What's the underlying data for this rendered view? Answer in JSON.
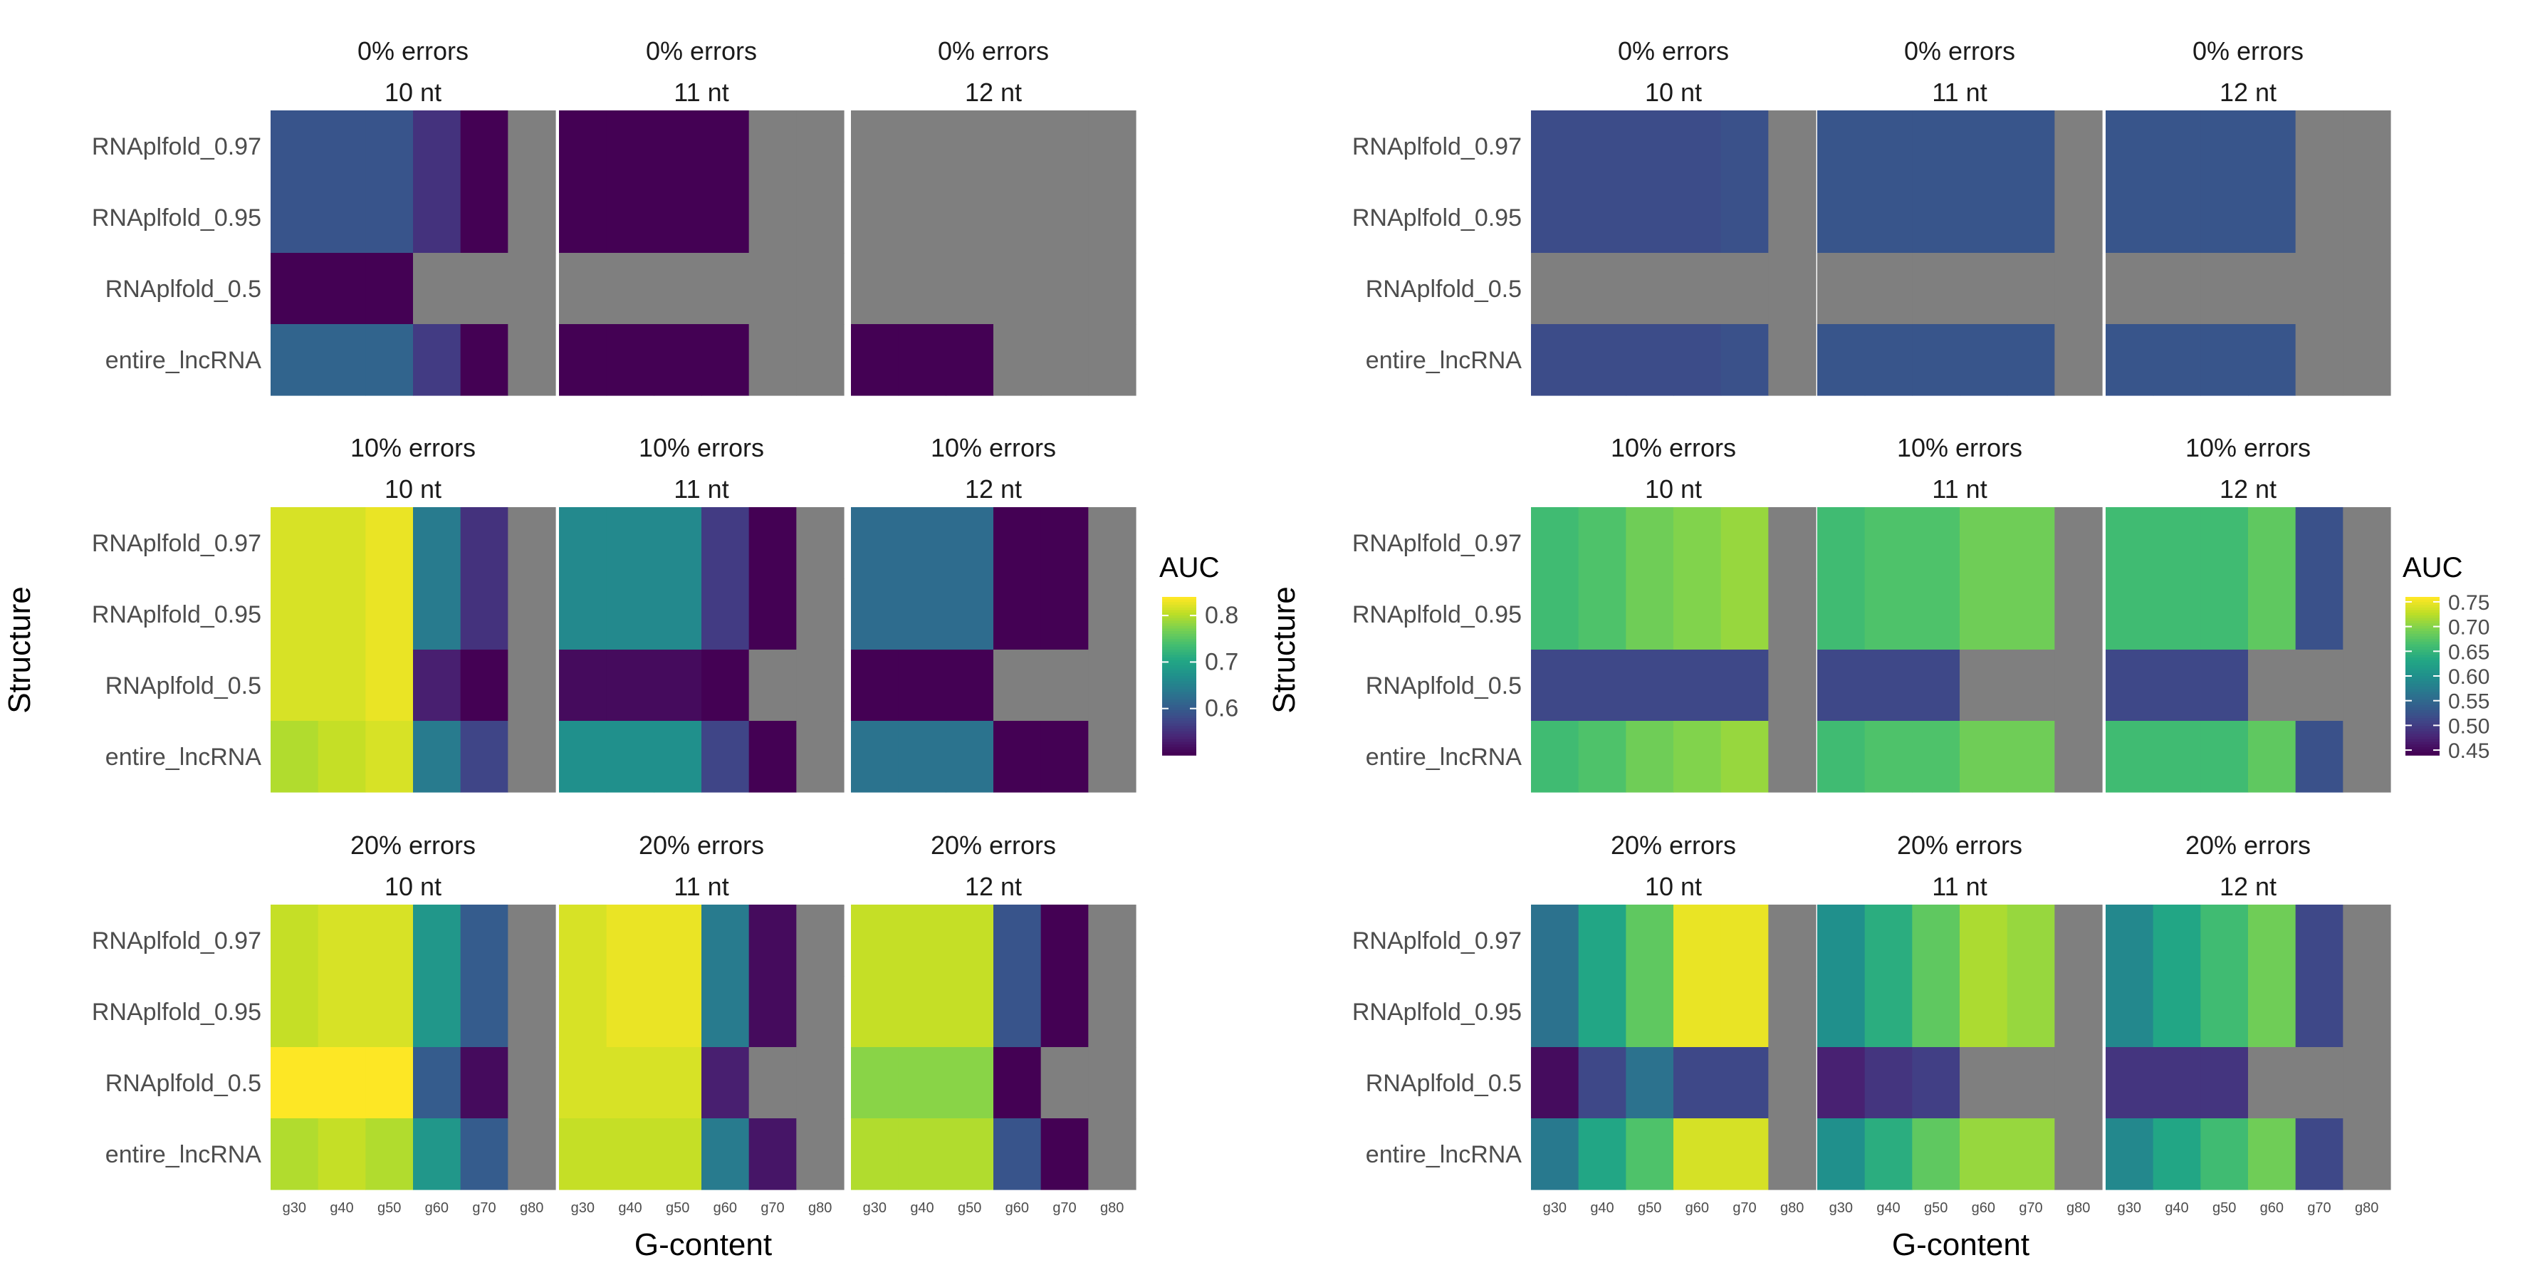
{
  "chart_data": [
    {
      "type": "heatmap",
      "panel_side": "left",
      "ylabel": "Structure",
      "xlabel": "G-content",
      "categories_x": [
        "g30",
        "g40",
        "g50",
        "g60",
        "g70",
        "g80"
      ],
      "categories_y": [
        "RNAplfold_0.97",
        "RNAplfold_0.95",
        "RNAplfold_0.5",
        "entire_lncRNA"
      ],
      "legend": {
        "title": "AUC",
        "ticks": [
          0.8,
          0.7,
          0.6
        ],
        "range": [
          0.5,
          0.84
        ],
        "position": "right"
      },
      "facets": [
        {
          "error_label": "0%  errors",
          "length_label": "10  nt",
          "values": [
            [
              0.59,
              0.59,
              0.59,
              0.55,
              0.47,
              null
            ],
            [
              0.59,
              0.59,
              0.59,
              0.55,
              0.47,
              null
            ],
            [
              0.49,
              0.49,
              0.49,
              null,
              null,
              null
            ],
            [
              0.61,
              0.61,
              0.61,
              0.56,
              0.47,
              null
            ]
          ]
        },
        {
          "error_label": "0%  errors",
          "length_label": "11  nt",
          "values": [
            [
              0.46,
              0.46,
              0.46,
              0.46,
              null,
              null
            ],
            [
              0.46,
              0.46,
              0.46,
              0.46,
              null,
              null
            ],
            [
              null,
              null,
              null,
              null,
              null,
              null
            ],
            [
              0.48,
              0.48,
              0.49,
              0.49,
              null,
              null
            ]
          ]
        },
        {
          "error_label": "0%  errors",
          "length_label": "12  nt",
          "values": [
            [
              null,
              null,
              null,
              null,
              null,
              null
            ],
            [
              null,
              null,
              null,
              null,
              null,
              null
            ],
            [
              null,
              null,
              null,
              null,
              null,
              null
            ],
            [
              0.47,
              0.47,
              0.47,
              null,
              null,
              null
            ]
          ]
        },
        {
          "error_label": "10%  errors",
          "length_label": "10  nt",
          "values": [
            [
              0.82,
              0.82,
              0.83,
              0.64,
              0.55,
              null
            ],
            [
              0.82,
              0.82,
              0.83,
              0.64,
              0.55,
              null
            ],
            [
              0.82,
              0.82,
              0.83,
              0.53,
              0.49,
              null
            ],
            [
              0.8,
              0.81,
              0.82,
              0.64,
              0.57,
              null
            ]
          ]
        },
        {
          "error_label": "10%  errors",
          "length_label": "11  nt",
          "values": [
            [
              0.66,
              0.66,
              0.66,
              0.56,
              0.48,
              null
            ],
            [
              0.66,
              0.66,
              0.66,
              0.56,
              0.48,
              null
            ],
            [
              0.51,
              0.51,
              0.51,
              0.49,
              null,
              null
            ],
            [
              0.67,
              0.67,
              0.67,
              0.57,
              0.48,
              null
            ]
          ]
        },
        {
          "error_label": "10%  errors",
          "length_label": "12  nt",
          "values": [
            [
              0.62,
              0.62,
              0.62,
              0.49,
              0.47,
              null
            ],
            [
              0.62,
              0.62,
              0.62,
              0.49,
              0.47,
              null
            ],
            [
              0.48,
              0.48,
              0.48,
              null,
              null,
              null
            ],
            [
              0.63,
              0.63,
              0.63,
              0.49,
              0.47,
              null
            ]
          ]
        },
        {
          "error_label": "20%  errors",
          "length_label": "10  nt",
          "values": [
            [
              0.81,
              0.82,
              0.82,
              0.68,
              0.6,
              null
            ],
            [
              0.81,
              0.82,
              0.82,
              0.68,
              0.6,
              null
            ],
            [
              0.84,
              0.84,
              0.84,
              0.6,
              0.51,
              null
            ],
            [
              0.8,
              0.81,
              0.8,
              0.68,
              0.6,
              null
            ]
          ]
        },
        {
          "error_label": "20%  errors",
          "length_label": "11  nt",
          "values": [
            [
              0.82,
              0.83,
              0.83,
              0.64,
              0.51,
              null
            ],
            [
              0.82,
              0.83,
              0.83,
              0.64,
              0.51,
              null
            ],
            [
              0.82,
              0.82,
              0.82,
              0.53,
              null,
              null
            ],
            [
              0.81,
              0.81,
              0.81,
              0.64,
              0.52,
              null
            ]
          ]
        },
        {
          "error_label": "20%  errors",
          "length_label": "12  nt",
          "values": [
            [
              0.81,
              0.81,
              0.81,
              0.59,
              0.48,
              null
            ],
            [
              0.81,
              0.81,
              0.81,
              0.59,
              0.48,
              null
            ],
            [
              0.78,
              0.78,
              0.78,
              0.48,
              null,
              null
            ],
            [
              0.8,
              0.8,
              0.8,
              0.59,
              0.49,
              null
            ]
          ]
        }
      ]
    },
    {
      "type": "heatmap",
      "panel_side": "right",
      "ylabel": "Structure",
      "xlabel": "G-content",
      "categories_x": [
        "g30",
        "g40",
        "g50",
        "g60",
        "g70",
        "g80"
      ],
      "categories_y": [
        "RNAplfold_0.97",
        "RNAplfold_0.95",
        "RNAplfold_0.5",
        "entire_lncRNA"
      ],
      "legend": {
        "title": "AUC",
        "ticks": [
          0.75,
          0.7,
          0.65,
          0.6,
          0.55,
          0.5,
          0.45
        ],
        "range": [
          0.44,
          0.76
        ],
        "position": "right"
      },
      "facets": [
        {
          "error_label": "0%  errors",
          "length_label": "10  nt",
          "values": [
            [
              0.515,
              0.515,
              0.515,
              0.515,
              0.52,
              null
            ],
            [
              0.515,
              0.515,
              0.515,
              0.515,
              0.52,
              null
            ],
            [
              null,
              null,
              null,
              null,
              null,
              null
            ],
            [
              0.515,
              0.515,
              0.515,
              0.515,
              0.52,
              null
            ]
          ]
        },
        {
          "error_label": "0%  errors",
          "length_label": "11  nt",
          "values": [
            [
              0.525,
              0.525,
              0.525,
              0.525,
              0.525,
              null
            ],
            [
              0.525,
              0.525,
              0.525,
              0.525,
              0.525,
              null
            ],
            [
              null,
              null,
              null,
              null,
              null,
              null
            ],
            [
              0.525,
              0.525,
              0.525,
              0.525,
              0.525,
              null
            ]
          ]
        },
        {
          "error_label": "0%  errors",
          "length_label": "12  nt",
          "values": [
            [
              0.525,
              0.525,
              0.525,
              0.525,
              null,
              null
            ],
            [
              0.525,
              0.525,
              0.525,
              0.525,
              null,
              null
            ],
            [
              null,
              null,
              null,
              null,
              null,
              null
            ],
            [
              0.525,
              0.525,
              0.525,
              0.525,
              null,
              null
            ]
          ]
        },
        {
          "error_label": "10%  errors",
          "length_label": "10  nt",
          "values": [
            [
              0.66,
              0.67,
              0.69,
              0.7,
              0.71,
              null
            ],
            [
              0.66,
              0.67,
              0.69,
              0.7,
              0.71,
              null
            ],
            [
              0.51,
              0.51,
              0.51,
              0.51,
              0.51,
              null
            ],
            [
              0.66,
              0.67,
              0.69,
              0.7,
              0.71,
              null
            ]
          ]
        },
        {
          "error_label": "10%  errors",
          "length_label": "11  nt",
          "values": [
            [
              0.66,
              0.67,
              0.67,
              0.69,
              0.69,
              null
            ],
            [
              0.66,
              0.67,
              0.67,
              0.69,
              0.69,
              null
            ],
            [
              0.51,
              0.51,
              0.51,
              null,
              null,
              null
            ],
            [
              0.66,
              0.67,
              0.67,
              0.69,
              0.69,
              null
            ]
          ]
        },
        {
          "error_label": "10%  errors",
          "length_label": "12  nt",
          "values": [
            [
              0.66,
              0.66,
              0.66,
              0.68,
              0.52,
              null
            ],
            [
              0.66,
              0.66,
              0.66,
              0.68,
              0.52,
              null
            ],
            [
              0.51,
              0.51,
              0.51,
              null,
              null,
              null
            ],
            [
              0.66,
              0.66,
              0.66,
              0.68,
              0.52,
              null
            ]
          ]
        },
        {
          "error_label": "20%  errors",
          "length_label": "10  nt",
          "values": [
            [
              0.56,
              0.63,
              0.68,
              0.75,
              0.75,
              null
            ],
            [
              0.56,
              0.63,
              0.68,
              0.75,
              0.75,
              null
            ],
            [
              0.45,
              0.51,
              0.56,
              0.51,
              0.51,
              null
            ],
            [
              0.57,
              0.63,
              0.67,
              0.74,
              0.74,
              null
            ]
          ]
        },
        {
          "error_label": "20%  errors",
          "length_label": "11  nt",
          "values": [
            [
              0.6,
              0.64,
              0.68,
              0.72,
              0.71,
              null
            ],
            [
              0.6,
              0.64,
              0.68,
              0.72,
              0.71,
              null
            ],
            [
              0.47,
              0.49,
              0.5,
              null,
              null,
              null
            ],
            [
              0.6,
              0.64,
              0.68,
              0.71,
              0.71,
              null
            ]
          ]
        },
        {
          "error_label": "20%  errors",
          "length_label": "12  nt",
          "values": [
            [
              0.59,
              0.63,
              0.66,
              0.69,
              0.51,
              null
            ],
            [
              0.59,
              0.63,
              0.66,
              0.69,
              0.51,
              null
            ],
            [
              0.49,
              0.49,
              0.49,
              null,
              null,
              null
            ],
            [
              0.59,
              0.63,
              0.66,
              0.69,
              0.51,
              null
            ]
          ]
        }
      ]
    }
  ]
}
